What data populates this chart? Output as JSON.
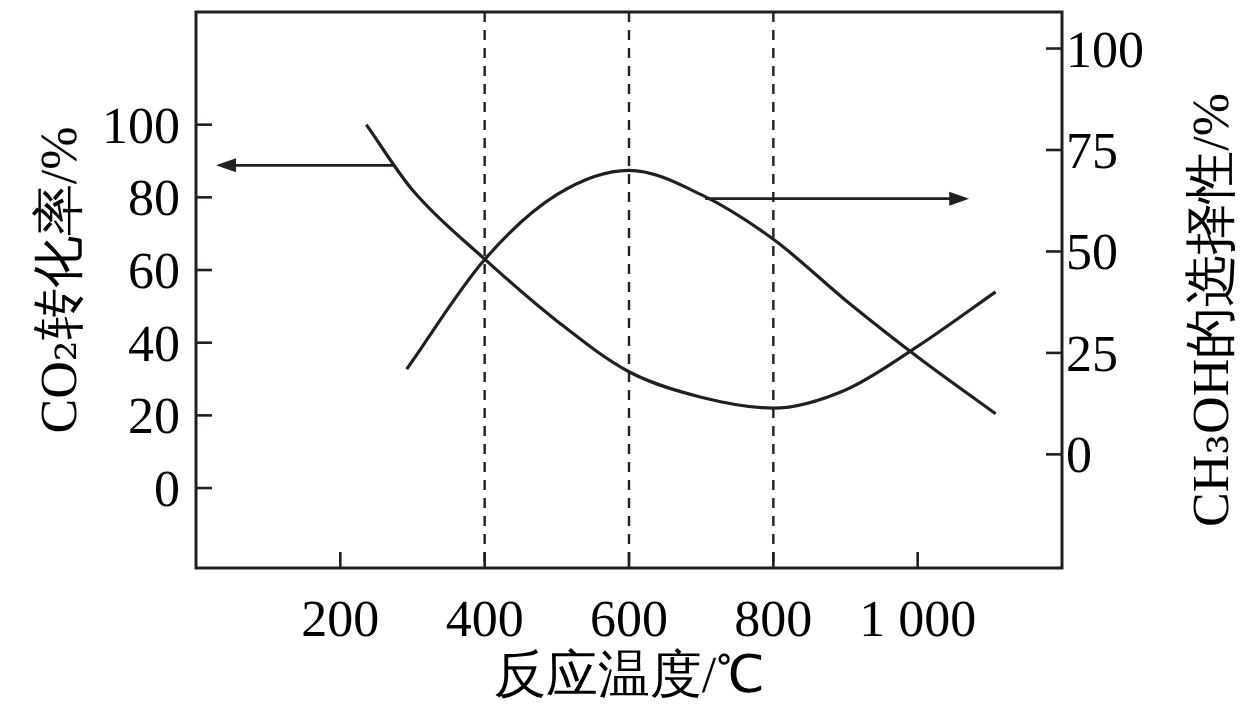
{
  "chart_data": {
    "type": "line",
    "xlabel": "反应温度/℃",
    "ylabel": "CO₂转化率/%",
    "y2label": "CH₃OH的选择性/%",
    "xlim": [
      0,
      1200
    ],
    "xticks": [
      200,
      400,
      600,
      800,
      {
        "value": 1000,
        "label": "1 000"
      }
    ],
    "ylim": [
      -22,
      131
    ],
    "yticks": [
      0,
      20,
      40,
      60,
      80,
      100
    ],
    "y2lim": [
      -28,
      109
    ],
    "y2ticks": [
      0,
      25,
      50,
      75,
      100
    ],
    "grid": false,
    "line_style": "solid",
    "series": [
      {
        "color": "#231f20",
        "x": [
          236,
          300,
          400,
          500,
          600,
          700,
          800,
          900,
          1000,
          1108
        ],
        "values": [
          100,
          82,
          63,
          46,
          32,
          25,
          22,
          27,
          39,
          54
        ]
      },
      {
        "color": "#231f20",
        "axis": "y2",
        "x": [
          292,
          400,
          500,
          600,
          700,
          800,
          900,
          1000,
          1108
        ],
        "values": [
          21,
          48,
          64,
          70,
          64,
          53,
          38,
          24,
          10
        ]
      }
    ],
    "ref_lines": [
      {
        "axis": "x",
        "value": 400,
        "line_style": "dashed"
      },
      {
        "axis": "x",
        "value": 600,
        "line_style": "dashed"
      },
      {
        "axis": "x",
        "value": 800,
        "line_style": "dashed"
      }
    ]
  }
}
